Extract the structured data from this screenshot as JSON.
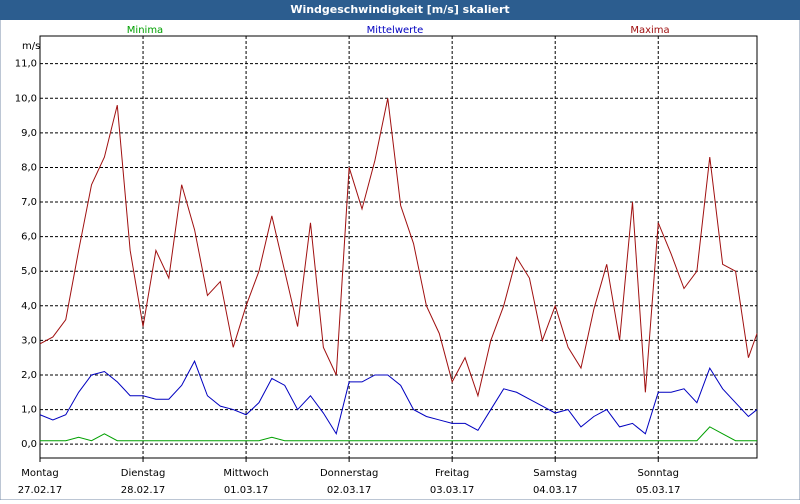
{
  "chart_data": {
    "type": "line",
    "title": "Windgeschwindigkeit [m/s] skaliert",
    "y_unit": "m/s",
    "x": [
      0,
      3,
      6,
      9,
      12,
      15,
      18,
      21,
      24,
      27,
      30,
      33,
      36,
      39,
      42,
      45,
      48,
      51,
      54,
      57,
      60,
      63,
      66,
      69,
      72,
      75,
      78,
      81,
      84,
      87,
      90,
      93,
      96,
      99,
      102,
      105,
      108,
      111,
      114,
      117,
      120,
      123,
      126,
      129,
      132,
      135,
      138,
      141,
      144,
      147,
      150,
      153,
      156,
      159,
      162,
      165,
      167
    ],
    "series": [
      {
        "name": "Minima",
        "color": "#00a000",
        "values": [
          0.1,
          0.1,
          0.1,
          0.2,
          0.1,
          0.3,
          0.1,
          0.1,
          0.1,
          0.1,
          0.1,
          0.1,
          0.1,
          0.1,
          0.1,
          0.1,
          0.1,
          0.1,
          0.2,
          0.1,
          0.1,
          0.1,
          0.1,
          0.1,
          0.1,
          0.1,
          0.1,
          0.1,
          0.1,
          0.1,
          0.1,
          0.1,
          0.1,
          0.1,
          0.1,
          0.1,
          0.1,
          0.1,
          0.1,
          0.1,
          0.1,
          0.1,
          0.1,
          0.1,
          0.1,
          0.1,
          0.1,
          0.1,
          0.1,
          0.1,
          0.1,
          0.1,
          0.5,
          0.3,
          0.1,
          0.1,
          0.1
        ]
      },
      {
        "name": "Mittelwerte",
        "color": "#0000c0",
        "values": [
          0.85,
          0.7,
          0.85,
          1.5,
          2.0,
          2.1,
          1.8,
          1.4,
          1.4,
          1.3,
          1.3,
          1.7,
          2.4,
          1.4,
          1.1,
          1.0,
          0.85,
          1.2,
          1.9,
          1.7,
          1.0,
          1.4,
          0.9,
          0.3,
          1.8,
          1.8,
          2.0,
          2.0,
          1.7,
          1.0,
          0.8,
          0.7,
          0.6,
          0.6,
          0.4,
          1.0,
          1.6,
          1.5,
          1.3,
          1.1,
          0.9,
          1.0,
          0.5,
          0.8,
          1.0,
          0.5,
          0.6,
          0.3,
          1.5,
          1.5,
          1.6,
          1.2,
          2.2,
          1.6,
          1.2,
          0.8,
          1.0
        ]
      },
      {
        "name": "Maxima",
        "color": "#a01010",
        "values": [
          2.9,
          3.1,
          3.6,
          5.6,
          7.5,
          8.3,
          9.8,
          5.6,
          3.4,
          5.6,
          4.8,
          7.5,
          6.2,
          4.3,
          4.7,
          2.8,
          4.0,
          5.0,
          6.6,
          5.0,
          3.4,
          6.4,
          2.8,
          2.0,
          8.0,
          6.8,
          8.2,
          10.0,
          6.9,
          5.8,
          4.0,
          3.2,
          1.8,
          2.5,
          1.4,
          3.0,
          4.0,
          5.4,
          4.8,
          3.0,
          4.0,
          2.8,
          2.2,
          3.9,
          5.2,
          3.0,
          7.0,
          1.5,
          6.4,
          5.5,
          4.5,
          5.0,
          8.3,
          5.2,
          5.0,
          2.5,
          3.2
        ]
      }
    ],
    "xlim": [
      0,
      167
    ],
    "xticks": [
      {
        "value": 0,
        "label": "Montag"
      },
      {
        "value": 24,
        "label": "Dienstag"
      },
      {
        "value": 48,
        "label": "Mittwoch"
      },
      {
        "value": 72,
        "label": "Donnerstag"
      },
      {
        "value": 96,
        "label": "Freitag"
      },
      {
        "value": 120,
        "label": "Samstag"
      },
      {
        "value": 144,
        "label": "Sonntag"
      }
    ],
    "xtick_dates": [
      "27.02.17",
      "28.02.17",
      "01.03.17",
      "02.03.17",
      "03.03.17",
      "04.03.17",
      "05.03.17"
    ],
    "ylim": [
      -0.4,
      11.8
    ],
    "yticks": [
      {
        "value": 0,
        "label": "0,0"
      },
      {
        "value": 1,
        "label": "1,0"
      },
      {
        "value": 2,
        "label": "2,0"
      },
      {
        "value": 3,
        "label": "3,0"
      },
      {
        "value": 4,
        "label": "4,0"
      },
      {
        "value": 5,
        "label": "5,0"
      },
      {
        "value": 6,
        "label": "6,0"
      },
      {
        "value": 7,
        "label": "7,0"
      },
      {
        "value": 8,
        "label": "8,0"
      },
      {
        "value": 9,
        "label": "9,0"
      },
      {
        "value": 10,
        "label": "10,0"
      },
      {
        "value": 11,
        "label": "11,0"
      }
    ],
    "grid": true
  }
}
